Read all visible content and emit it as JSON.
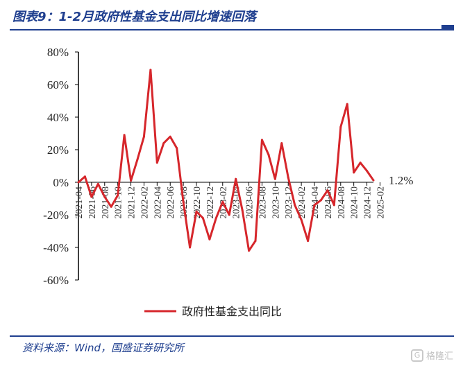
{
  "title": "图表9：1-2月政府性基金支出同比增速回落",
  "source": "资料来源：Wind，国盛证券研究所",
  "watermark": {
    "text": "格隆汇",
    "logo_glyph": "G"
  },
  "colors": {
    "line": "#d6262b",
    "header": "#1f3f8f",
    "axis": "#000000"
  },
  "chart_data": {
    "type": "line",
    "x_tick_labels": [
      "2021-04",
      "2021-06",
      "2021-08",
      "2021-10",
      "2021-12",
      "2022-02",
      "2022-04",
      "2022-06",
      "2022-08",
      "2022-10",
      "2022-12",
      "2023-02",
      "2023-04",
      "2023-06",
      "2023-08",
      "2023-10",
      "2023-12",
      "2024-02",
      "2024-04",
      "2024-06",
      "2024-08",
      "2024-10",
      "2024-12",
      "2025-02"
    ],
    "y_tick_labels": [
      "80%",
      "60%",
      "40%",
      "20%",
      "0%",
      "-20%",
      "-40%",
      "-60%"
    ],
    "ylim": [
      -60,
      80
    ],
    "grid": false,
    "legend_position": "bottom",
    "end_annotation": "1.2%",
    "series": [
      {
        "name": "政府性基金支出同比",
        "values": [
          0,
          3.5,
          -9,
          -1,
          -9,
          -15,
          -8,
          29,
          1,
          14,
          28,
          69,
          12,
          24,
          28,
          21,
          -12,
          -40,
          -18,
          -22,
          -35,
          -22,
          -12,
          -20,
          2,
          -17,
          -42,
          -36,
          26,
          17,
          2,
          24,
          3,
          -14,
          -23,
          -36,
          -14,
          -11,
          -5,
          -14,
          34,
          48,
          6,
          12,
          7,
          1.2
        ]
      }
    ]
  }
}
